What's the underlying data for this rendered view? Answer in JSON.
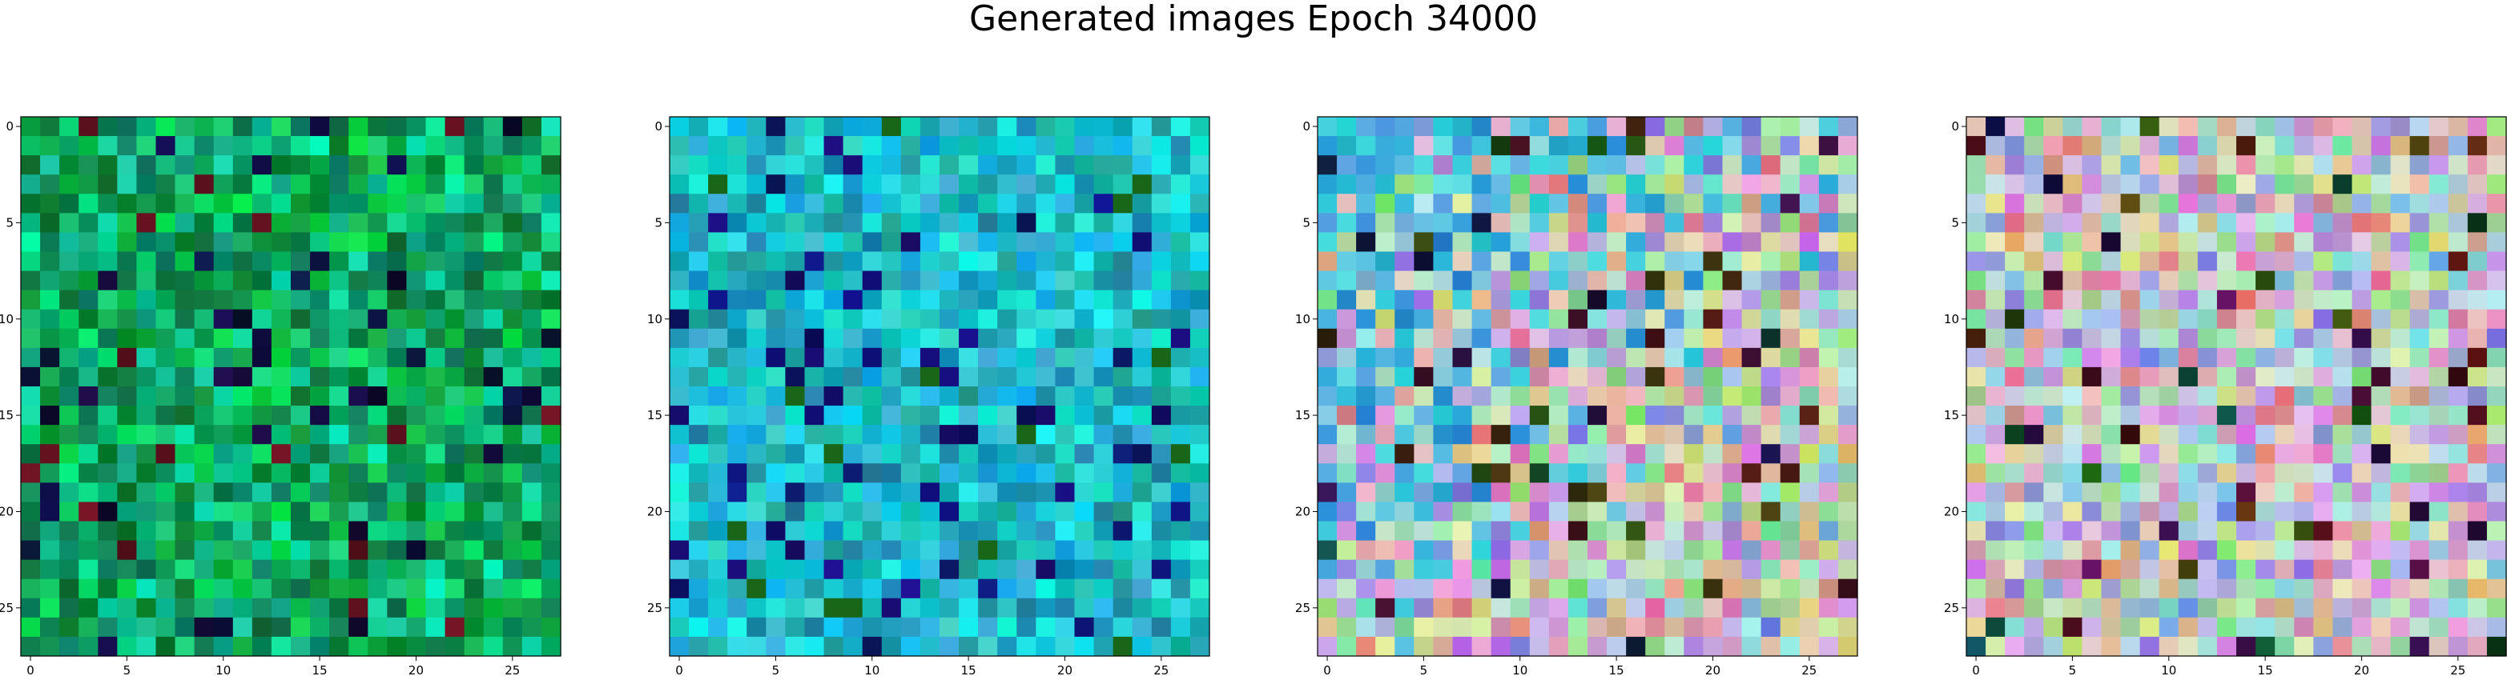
{
  "title": "Generated images Epoch 34000",
  "chart_data": [
    {
      "type": "heatmap",
      "grid": [
        28,
        28
      ],
      "palette": "green",
      "xticks": [
        0,
        5,
        10,
        15,
        20,
        25
      ],
      "yticks": [
        0,
        5,
        10,
        15,
        20,
        25
      ],
      "xlim": [
        -0.5,
        27.5
      ],
      "ylim": [
        27.5,
        -0.5
      ]
    },
    {
      "type": "heatmap",
      "grid": [
        28,
        28
      ],
      "palette": "teal",
      "xticks": [
        0,
        5,
        10,
        15,
        20,
        25
      ],
      "yticks": [
        0,
        5,
        10,
        15,
        20,
        25
      ],
      "xlim": [
        -0.5,
        27.5
      ],
      "ylim": [
        27.5,
        -0.5
      ]
    },
    {
      "type": "heatmap",
      "grid": [
        28,
        28
      ],
      "palette": "mixed",
      "xticks": [
        0,
        5,
        10,
        15,
        20,
        25
      ],
      "yticks": [
        0,
        5,
        10,
        15,
        20,
        25
      ],
      "xlim": [
        -0.5,
        27.5
      ],
      "ylim": [
        27.5,
        -0.5
      ]
    },
    {
      "type": "heatmap",
      "grid": [
        28,
        28
      ],
      "palette": "pastel",
      "xticks": [
        0,
        5,
        10,
        15,
        20,
        25
      ],
      "yticks": [
        0,
        5,
        10,
        15,
        20,
        25
      ],
      "xlim": [
        -0.5,
        27.5
      ],
      "ylim": [
        27.5,
        -0.5
      ]
    }
  ]
}
